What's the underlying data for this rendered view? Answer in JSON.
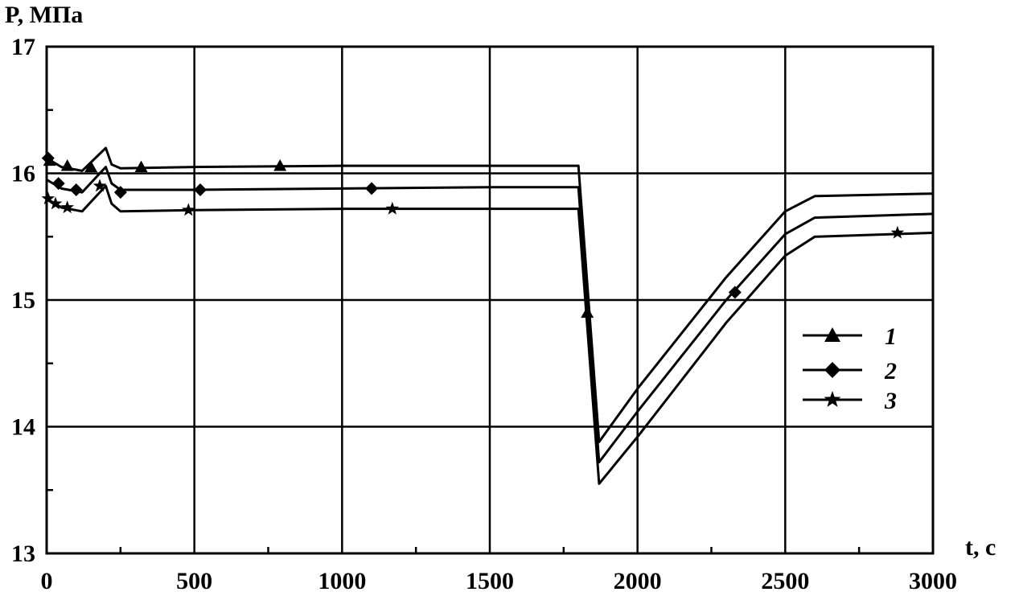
{
  "chart_data": {
    "type": "line",
    "title": "",
    "ylabel": "P, МПа",
    "xlabel": "t, c",
    "xlim": [
      0,
      3000
    ],
    "ylim": [
      13,
      17
    ],
    "grid": true,
    "legend_position": "right",
    "x_ticks": [
      0,
      500,
      1000,
      1500,
      2000,
      2500,
      3000
    ],
    "y_ticks": [
      13,
      14,
      15,
      16,
      17
    ],
    "x_tick_labels": [
      "0",
      "500",
      "1000",
      "1500",
      "2000",
      "2500",
      "3000"
    ],
    "y_tick_labels": [
      "13",
      "14",
      "15",
      "16",
      "17"
    ],
    "series": [
      {
        "name": "1",
        "marker": "triangle",
        "x": [
          0,
          50,
          120,
          200,
          220,
          250,
          500,
          1000,
          1500,
          1800,
          1870,
          2000,
          2300,
          2500,
          2600,
          3000
        ],
        "y": [
          16.12,
          16.05,
          16.02,
          16.2,
          16.07,
          16.04,
          16.05,
          16.06,
          16.06,
          16.06,
          13.88,
          14.3,
          15.18,
          15.7,
          15.82,
          15.84
        ],
        "marker_x": [
          10,
          70,
          150,
          320,
          790,
          1830
        ],
        "marker_y": [
          16.1,
          16.06,
          16.05,
          16.05,
          16.06,
          14.9
        ]
      },
      {
        "name": "2",
        "marker": "diamond",
        "x": [
          0,
          50,
          120,
          200,
          220,
          250,
          500,
          1000,
          1500,
          1800,
          1870,
          2000,
          2300,
          2500,
          2600,
          3000
        ],
        "y": [
          15.95,
          15.88,
          15.85,
          16.05,
          15.92,
          15.87,
          15.87,
          15.88,
          15.89,
          15.89,
          13.72,
          14.12,
          15.0,
          15.52,
          15.65,
          15.68
        ],
        "marker_x": [
          5,
          40,
          100,
          250,
          520,
          1100,
          2330
        ],
        "marker_y": [
          16.12,
          15.92,
          15.87,
          15.85,
          15.87,
          15.88,
          15.06
        ]
      },
      {
        "name": "3",
        "marker": "star",
        "x": [
          0,
          50,
          120,
          200,
          220,
          250,
          500,
          1000,
          1500,
          1800,
          1870,
          2000,
          2300,
          2500,
          2600,
          3000
        ],
        "y": [
          15.8,
          15.73,
          15.7,
          15.9,
          15.76,
          15.7,
          15.71,
          15.72,
          15.72,
          15.72,
          13.55,
          13.92,
          14.82,
          15.35,
          15.5,
          15.53
        ],
        "marker_x": [
          5,
          30,
          70,
          180,
          480,
          1170,
          2880
        ],
        "marker_y": [
          15.8,
          15.76,
          15.73,
          15.9,
          15.71,
          15.72,
          15.53
        ]
      }
    ]
  }
}
